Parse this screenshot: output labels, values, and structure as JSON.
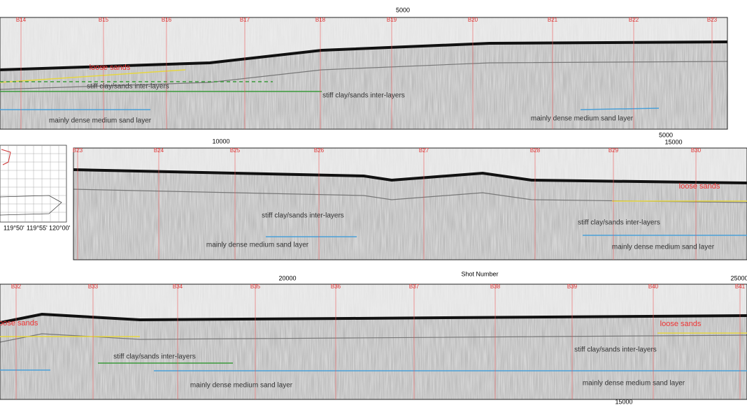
{
  "axis_labels": {
    "top_panel": [
      "5000"
    ],
    "middle_panel": [
      "10000",
      "5000",
      "15000"
    ],
    "shot_number": "Shot Number",
    "bottom_panel": [
      "20000",
      "25000"
    ],
    "bottom_footer": [
      "15000"
    ]
  },
  "map": {
    "longitudes": [
      "119°50'",
      "119°55'",
      "120°00'"
    ]
  },
  "panels": [
    {
      "boreholes": [
        "B14",
        "B15",
        "B16",
        "B17",
        "B18",
        "B19",
        "B20",
        "B21",
        "B22",
        "B23"
      ],
      "annotations": [
        "loose sands",
        "stiff clay/sands inter-layers",
        "stiff clay/sands inter-layers",
        "mainly dense medium sand layer",
        "mainly dense medium sand layer"
      ]
    },
    {
      "boreholes": [
        "B23",
        "B24",
        "B25",
        "B26",
        "B27",
        "B28",
        "B29",
        "B30"
      ],
      "annotations": [
        "loose sands",
        "stiff clay/sands inter-layers",
        "stiff clay/sands inter-layers",
        "mainly dense medium sand layer",
        "mainly dense medium sand layer"
      ]
    },
    {
      "boreholes": [
        "B32",
        "B33",
        "B34",
        "B35",
        "B36",
        "B37",
        "B38",
        "B39",
        "B40",
        "B41"
      ],
      "annotations": [
        "loose sands",
        "loose sands",
        "stiff clay/sands inter-layers",
        "stiff clay/sands inter-layers",
        "mainly dense medium sand layer",
        "mainly dense medium sand layer"
      ]
    }
  ]
}
